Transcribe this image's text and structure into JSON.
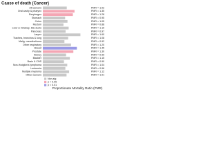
{
  "chart_data": {
    "type": "bar",
    "orientation": "horizontal",
    "title": "Cause of death (Cancer)",
    "xlabel": "Proportionate Mortality Ratio (PMR)",
    "categories": [
      "All cancers",
      "Oral cavity & pharynx",
      "Esophagus",
      "Stomach",
      "Colon",
      "Rectum",
      "Liver & intrahep. bile ducts",
      "Pancreas",
      "Larynx",
      "Trachea, bronchus & lung",
      "Malig. mesothelioma",
      "Other respiratory",
      "Breast",
      "Prostate",
      "Kidney",
      "Bladder",
      "Brain & CNS",
      "Non-Hodgkin's lymphoma",
      "Leukemia",
      "Multiple myeloma",
      "Other cancers"
    ],
    "values": [
      1.02,
      1.35,
      1.28,
      0.95,
      1.05,
      0.88,
      1.1,
      0.97,
      1.6,
      1.08,
      0.92,
      1.2,
      1.45,
      1.3,
      0.99,
      1.15,
      0.9,
      1.04,
      0.96,
      1.12,
      1.01
    ],
    "value_labels": [
      "PMR = 1.02",
      "PMR = 1.35",
      "PMR = 1.28",
      "PMR = 0.95",
      "PMR = 1.05",
      "PMR = 0.88",
      "PMR = 1.10",
      "PMR = 0.97",
      "PMR = 1.60",
      "PMR = 1.08",
      "PMR = 0.92",
      "PMR = 1.20",
      "PMR = 1.45",
      "PMR = 1.30",
      "PMR = 0.99",
      "PMR = 1.15",
      "PMR = 0.90",
      "PMR = 1.04",
      "PMR = 0.96",
      "PMR = 1.12",
      "PMR = 1.01"
    ],
    "significance": [
      0,
      1,
      1,
      0,
      0,
      0,
      0,
      0,
      0,
      0,
      0,
      0,
      2,
      1,
      0,
      0,
      0,
      0,
      0,
      0,
      0
    ],
    "legend": [
      {
        "name": "Non-sig",
        "color": "#c8c8c8"
      },
      {
        "name": "p < 0.05",
        "color": "#f4a6b4"
      },
      {
        "name": "p < 0.01",
        "color": "#9a9ae6"
      }
    ],
    "xlim": [
      0,
      2
    ]
  }
}
